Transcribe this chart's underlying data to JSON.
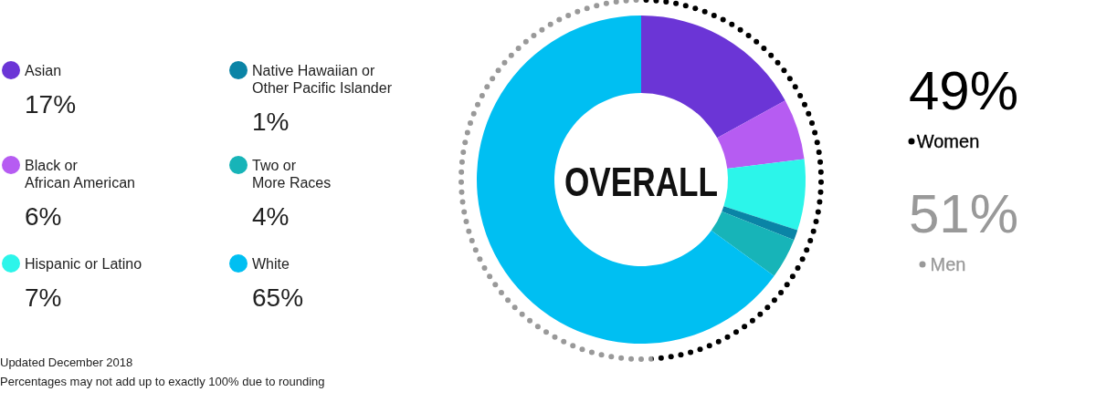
{
  "chart_data": [
    {
      "type": "donut",
      "title": "OVERALL",
      "categories": [
        "Asian",
        "Black or\nAfrican American",
        "Hispanic or Latino",
        "Native Hawaiian or\nOther Pacific Islander",
        "Two or\nMore Races",
        "White"
      ],
      "values": [
        17,
        6,
        7,
        1,
        4,
        65
      ],
      "colors": [
        "#6b35d6",
        "#b65cf2",
        "#2cf5ea",
        "#0a84a6",
        "#17b4b8",
        "#00bff2"
      ],
      "value_labels": [
        "17%",
        "6%",
        "7%",
        "1%",
        "4%",
        "65%"
      ],
      "legend": "left",
      "annotations": [
        "Updated December 2018",
        "Percentages may not add up to exactly 100% due to rounding"
      ]
    },
    {
      "type": "donut",
      "categories": [
        "Women",
        "Men"
      ],
      "values": [
        49,
        51
      ],
      "colors": [
        "#000000",
        "#999999"
      ],
      "value_labels": [
        "49%",
        "51%"
      ],
      "legend": "right"
    }
  ]
}
